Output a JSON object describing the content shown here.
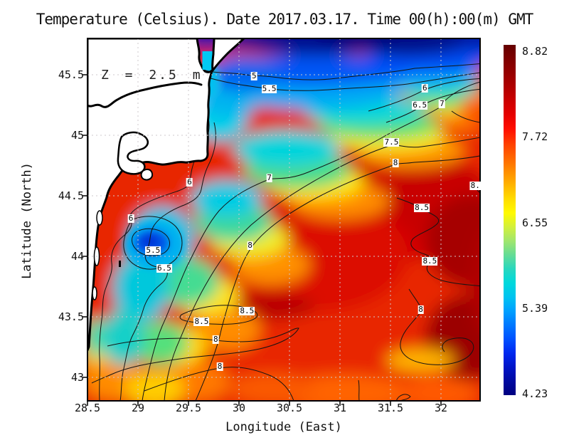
{
  "figure": {
    "title": "Temperature (Celsius). Date 2017.03.17. Time 00(h):00(m) GMT",
    "depth_label": "Z = 2.5 m"
  },
  "axes": {
    "x": {
      "label": "Longitude (East)",
      "ticks": [
        28.5,
        29,
        29.5,
        30,
        30.5,
        31,
        31.5,
        32
      ]
    },
    "y": {
      "label": "Latitude (North)",
      "ticks": [
        45.5,
        45,
        44.5,
        44,
        43.5,
        43
      ]
    }
  },
  "colorbar": {
    "labels": [
      "8.82",
      "7.72",
      "6.55",
      "5.39",
      "4.23"
    ],
    "min": 4.23,
    "max": 8.82,
    "palette_top_to_bottom": [
      "#640000",
      "#7e0000",
      "#960000",
      "#b00000",
      "#cc0000",
      "#e60000",
      "#ff0e00",
      "#ff3c00",
      "#ff6400",
      "#ff8c00",
      "#ffb400",
      "#ffdc00",
      "#fffa00",
      "#d2f03c",
      "#a0e66e",
      "#64dc96",
      "#28d7be",
      "#00d8dc",
      "#00c3f0",
      "#00a0ff",
      "#0078ff",
      "#0050ff",
      "#0028f0",
      "#0014c8",
      "#000aa0",
      "#000080"
    ]
  },
  "chart_data": {
    "type": "heatmap",
    "title": "Temperature (Celsius). Date 2017.03.17. Time 00(h):00(m) GMT",
    "xlabel": "Longitude (East)",
    "ylabel": "Latitude (North)",
    "x_ticks": [
      28.5,
      29,
      29.5,
      30,
      30.5,
      31,
      31.5,
      32
    ],
    "y_ticks": [
      45.5,
      45,
      44.5,
      44,
      43.5,
      43
    ],
    "xlim": [
      28.5,
      32.39
    ],
    "ylim": [
      42.81,
      45.8
    ],
    "value_unit": "Celsius",
    "value_range": [
      4.23,
      8.82
    ],
    "depth": "Z = 2.5 m",
    "grid": true,
    "contour_levels": [
      5,
      5.5,
      6,
      6.5,
      7,
      7.5,
      8,
      8.5
    ],
    "contour_labels": [
      {
        "value": "5",
        "lon": 30.15,
        "lat": 45.49
      },
      {
        "value": "5.5",
        "lon": 30.3,
        "lat": 45.38
      },
      {
        "value": "6",
        "lon": 31.84,
        "lat": 45.39
      },
      {
        "value": "6.5",
        "lon": 31.79,
        "lat": 45.25
      },
      {
        "value": "7",
        "lon": 32.01,
        "lat": 45.26
      },
      {
        "value": "7.5",
        "lon": 31.51,
        "lat": 44.94
      },
      {
        "value": "8",
        "lon": 31.55,
        "lat": 44.77
      },
      {
        "value": "7",
        "lon": 30.3,
        "lat": 44.65
      },
      {
        "value": "6",
        "lon": 29.51,
        "lat": 44.61
      },
      {
        "value": "8.",
        "lon": 32.34,
        "lat": 44.58
      },
      {
        "value": "8.5",
        "lon": 31.81,
        "lat": 44.4
      },
      {
        "value": "6",
        "lon": 28.93,
        "lat": 44.31
      },
      {
        "value": "8",
        "lon": 30.11,
        "lat": 44.09
      },
      {
        "value": "5.5",
        "lon": 29.15,
        "lat": 44.05
      },
      {
        "value": "8.5",
        "lon": 31.89,
        "lat": 43.96
      },
      {
        "value": "6.5",
        "lon": 29.26,
        "lat": 43.9
      },
      {
        "value": "8.5",
        "lon": 30.08,
        "lat": 43.55
      },
      {
        "value": "8",
        "lon": 31.8,
        "lat": 43.56
      },
      {
        "value": "8.5",
        "lon": 29.63,
        "lat": 43.46
      },
      {
        "value": "8",
        "lon": 29.77,
        "lat": 43.31
      },
      {
        "value": "8",
        "lon": 29.81,
        "lat": 43.09
      }
    ]
  }
}
